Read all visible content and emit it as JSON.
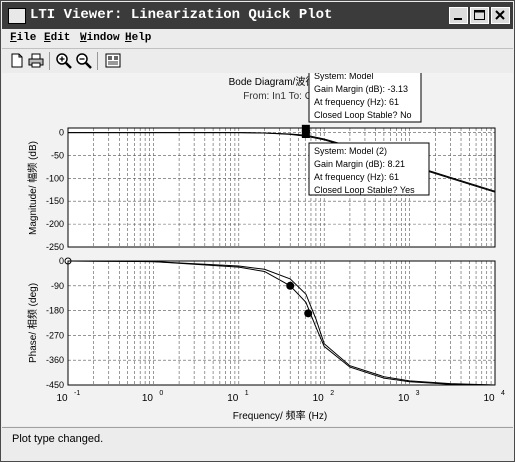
{
  "window": {
    "title": "LTI Viewer: Linearization Quick Plot"
  },
  "menu": {
    "items": [
      "File",
      "Edit",
      "Window",
      "Help"
    ]
  },
  "toolbar": {
    "tools": [
      "new-file-icon",
      "print-icon",
      "zoom-in-icon",
      "zoom-out-icon",
      "plot-config-icon"
    ]
  },
  "plot": {
    "title": "Bode Diagram/波德",
    "from_to": "From: In1  To: Out",
    "magnitude_ylabel": "Magnitude/ 幅频 (dB)",
    "phase_ylabel": "Phase/ 相频 (deg)",
    "xlabel": "Frequency/ 频率 (Hz)",
    "mag_ticks": [
      "0",
      "-50",
      "-100",
      "-150",
      "-200",
      "-250"
    ],
    "phase_ticks": [
      "0",
      "-90",
      "-180",
      "-270",
      "-360",
      "-450"
    ],
    "x_ticks": [
      {
        "base": "10",
        "exp": "-1"
      },
      {
        "base": "10",
        "exp": "0"
      },
      {
        "base": "10",
        "exp": "1"
      },
      {
        "base": "10",
        "exp": "2"
      },
      {
        "base": "10",
        "exp": "3"
      },
      {
        "base": "10",
        "exp": "4"
      }
    ]
  },
  "chart_data": {
    "type": "line",
    "xscale": "log",
    "xlim": [
      0.1,
      10000
    ],
    "x": [
      0.1,
      1,
      10,
      20,
      40,
      61,
      80,
      100,
      200,
      500,
      1000,
      3000,
      10000
    ],
    "magnitude": {
      "ylim": [
        -250,
        10
      ],
      "series": [
        {
          "values": [
            0,
            0,
            0,
            -1,
            -4,
            -8,
            -12,
            -16,
            -32,
            -56,
            -72,
            -100,
            -130
          ]
        },
        {
          "values": [
            0,
            0,
            0,
            -1,
            -3,
            -6,
            -10,
            -14,
            -30,
            -55,
            -70,
            -98,
            -128
          ]
        }
      ]
    },
    "phase": {
      "ylim": [
        -450,
        0
      ],
      "series": [
        {
          "values": [
            0,
            -2,
            -18,
            -30,
            -65,
            -120,
            -210,
            -300,
            -380,
            -420,
            -435,
            -445,
            -450
          ]
        },
        {
          "values": [
            0,
            -2,
            -22,
            -38,
            -90,
            -150,
            -240,
            -310,
            -385,
            -425,
            -438,
            -447,
            -450
          ]
        }
      ]
    },
    "markers": [
      {
        "plot": "magnitude",
        "x": 61,
        "y": -3.13
      },
      {
        "plot": "magnitude",
        "x": 61,
        "y": 8.21
      },
      {
        "plot": "phase",
        "x": 40,
        "y": -90
      },
      {
        "plot": "phase",
        "x": 65,
        "y": -190
      }
    ]
  },
  "tooltip1": {
    "lines": [
      "System: Model",
      "Gain Margin (dB): -3.13",
      "At frequency (Hz): 61",
      "Closed Loop Stable? No"
    ]
  },
  "tooltip2": {
    "lines": [
      "System: Model (2)",
      "Gain Margin (dB): 8.21",
      "At frequency (Hz): 61",
      "Closed Loop Stable? Yes"
    ]
  },
  "status": {
    "text": "Plot type changed."
  }
}
